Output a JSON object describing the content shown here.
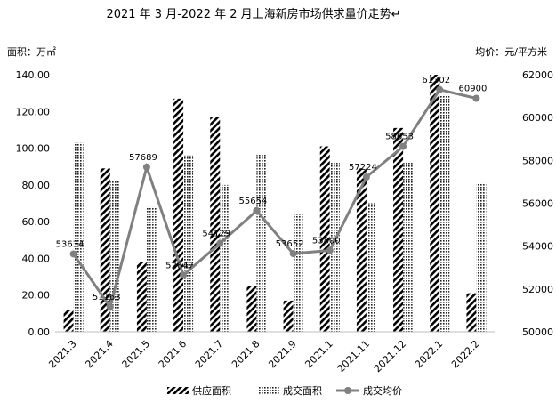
{
  "chart_data": {
    "type": "bar",
    "title": "2021 年 3 月-2022 年 2 月上海新房市场供求量价走势↵",
    "ylabel": "面积：万㎡",
    "y2label": "均价：元/平方米",
    "categories": [
      "2021.3",
      "2021.4",
      "2021.5",
      "2021.6",
      "2021.7",
      "2021.8",
      "2021.9",
      "2021.1",
      "2021.11",
      "2021.12",
      "2022.1",
      "2022.2"
    ],
    "ylim": [
      0,
      140
    ],
    "yticks": [
      "0.00",
      "20.00",
      "40.00",
      "60.00",
      "80.00",
      "100.00",
      "120.00",
      "140.00"
    ],
    "y2lim": [
      50000,
      62000
    ],
    "y2ticks": [
      "50000",
      "52000",
      "54000",
      "56000",
      "58000",
      "60000",
      "62000"
    ],
    "series": [
      {
        "name": "供应面积",
        "kind": "bar",
        "pattern": "diagonal-stripe",
        "values": [
          12,
          89,
          38,
          127,
          117,
          25,
          17,
          101,
          89,
          111,
          140,
          21
        ]
      },
      {
        "name": "成交面积",
        "kind": "bar",
        "pattern": "crosshatch",
        "values": [
          103,
          82,
          68,
          96,
          80,
          97,
          65,
          92,
          70,
          92,
          129,
          81
        ]
      },
      {
        "name": "成交均价",
        "kind": "line",
        "axis": "right",
        "color": "#808080",
        "values": [
          53634,
          51163,
          57689,
          52647,
          54129,
          55654,
          53652,
          53800,
          57224,
          58653,
          61302,
          60900
        ],
        "labels": [
          "53634",
          "51163",
          "57689",
          "52647",
          "54129",
          "55654",
          "53652",
          "53800",
          "57224",
          "58653",
          "61302",
          "60900"
        ]
      }
    ],
    "grid": false,
    "legend": "bottom"
  }
}
